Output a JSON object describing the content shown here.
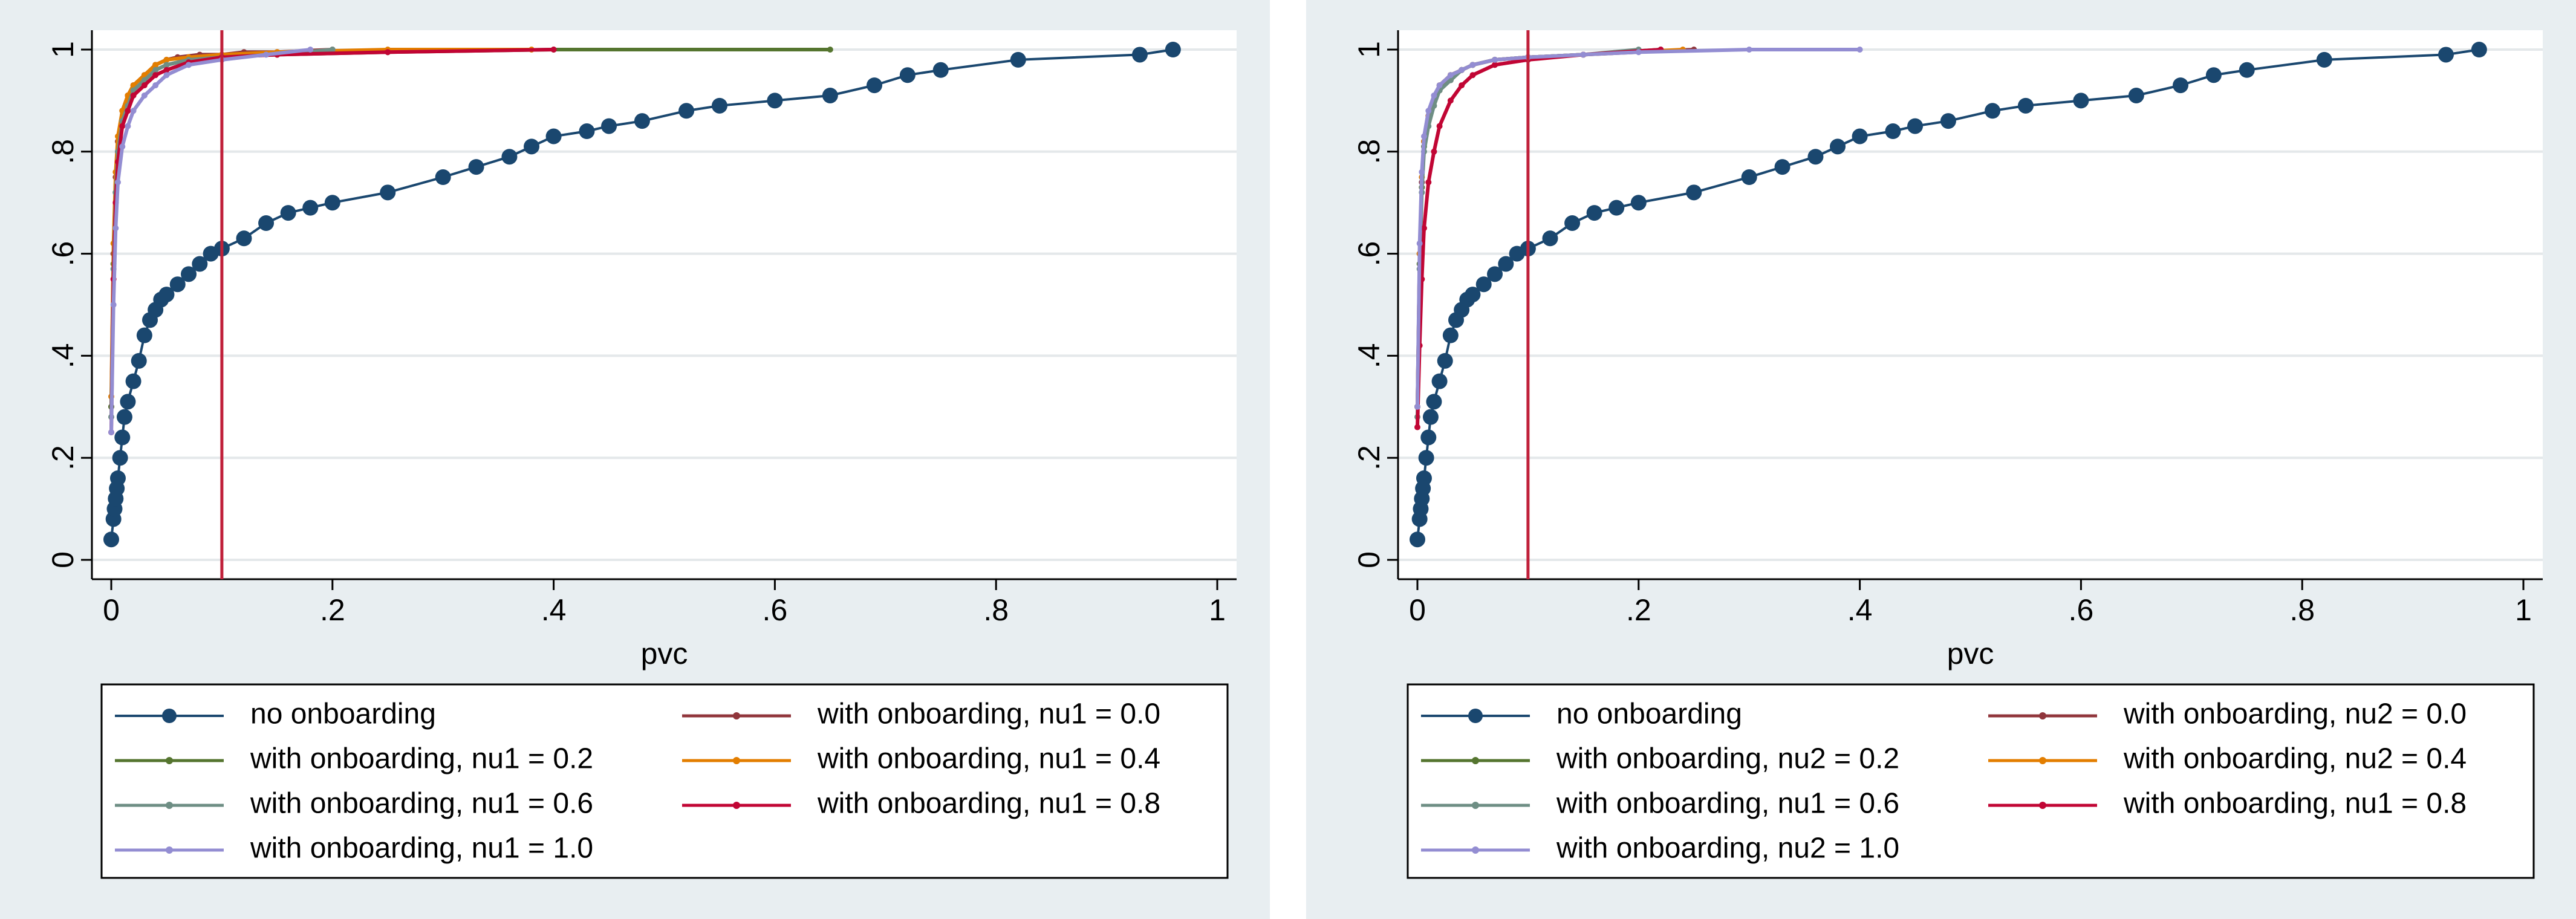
{
  "colors": {
    "background": "#e8eef1",
    "plot_bg": "#ffffff",
    "grid": "#e4e8ea",
    "axis": "#000000",
    "cutoff_line": "#c0203a",
    "no_onboarding": "#1a476f",
    "nu_0_0": "#90353b",
    "nu_0_2": "#55752f",
    "nu_0_4": "#e37e00",
    "nu_0_6": "#6e8e84",
    "nu_0_8": "#c10534",
    "nu_1_0": "#938dd2"
  },
  "chart_data": [
    {
      "type": "line",
      "xlabel": "pvc",
      "ylabel": "",
      "xlim": [
        0,
        1
      ],
      "ylim": [
        0,
        1
      ],
      "xticks": [
        0,
        0.2,
        0.4,
        0.6,
        0.8,
        1
      ],
      "xtick_labels": [
        "0",
        ".2",
        ".4",
        ".6",
        ".8",
        "1"
      ],
      "yticks": [
        0,
        0.2,
        0.4,
        0.6,
        0.8,
        1
      ],
      "ytick_labels": [
        "0",
        ".2",
        ".4",
        ".6",
        ".8",
        "1"
      ],
      "grid": true,
      "reference_line_x": 0.1,
      "legend_placement": "bottom",
      "series": [
        {
          "name": "no onboarding",
          "color_key": "no_onboarding",
          "marker": "large",
          "x": [
            0,
            0.002,
            0.003,
            0.004,
            0.005,
            0.006,
            0.008,
            0.01,
            0.012,
            0.015,
            0.02,
            0.025,
            0.03,
            0.035,
            0.04,
            0.045,
            0.05,
            0.06,
            0.07,
            0.08,
            0.09,
            0.1,
            0.12,
            0.14,
            0.16,
            0.18,
            0.2,
            0.25,
            0.3,
            0.33,
            0.36,
            0.38,
            0.4,
            0.43,
            0.45,
            0.48,
            0.52,
            0.55,
            0.6,
            0.65,
            0.69,
            0.72,
            0.75,
            0.82,
            0.93,
            0.96
          ],
          "y": [
            0.04,
            0.08,
            0.1,
            0.12,
            0.14,
            0.16,
            0.2,
            0.24,
            0.28,
            0.31,
            0.35,
            0.39,
            0.44,
            0.47,
            0.49,
            0.51,
            0.52,
            0.54,
            0.56,
            0.58,
            0.6,
            0.61,
            0.63,
            0.66,
            0.68,
            0.69,
            0.7,
            0.72,
            0.75,
            0.77,
            0.79,
            0.81,
            0.83,
            0.84,
            0.85,
            0.86,
            0.88,
            0.89,
            0.9,
            0.91,
            0.93,
            0.95,
            0.96,
            0.98,
            0.99,
            1.0
          ]
        },
        {
          "name": "with onboarding, nu1 = 0.0",
          "color_key": "nu_0_0",
          "marker": "small",
          "x": [
            0,
            0.002,
            0.004,
            0.006,
            0.01,
            0.015,
            0.02,
            0.03,
            0.04,
            0.05,
            0.06,
            0.08,
            0.1,
            0.12,
            0.15,
            0.2
          ],
          "y": [
            0.3,
            0.6,
            0.75,
            0.82,
            0.88,
            0.91,
            0.93,
            0.95,
            0.97,
            0.98,
            0.985,
            0.99,
            0.99,
            0.995,
            0.995,
            1.0
          ]
        },
        {
          "name": "with onboarding, nu1 = 0.2",
          "color_key": "nu_0_2",
          "marker": "small",
          "x": [
            0,
            0.002,
            0.004,
            0.006,
            0.01,
            0.015,
            0.02,
            0.03,
            0.04,
            0.05,
            0.07,
            0.1,
            0.15,
            0.25,
            0.4,
            0.65
          ],
          "y": [
            0.3,
            0.58,
            0.72,
            0.8,
            0.86,
            0.9,
            0.92,
            0.94,
            0.96,
            0.97,
            0.98,
            0.985,
            0.99,
            0.995,
            1.0,
            1.0
          ]
        },
        {
          "name": "with onboarding, nu1 = 0.4",
          "color_key": "nu_0_4",
          "marker": "small",
          "x": [
            0,
            0.002,
            0.004,
            0.006,
            0.01,
            0.015,
            0.02,
            0.03,
            0.04,
            0.05,
            0.07,
            0.1,
            0.15,
            0.25,
            0.38
          ],
          "y": [
            0.32,
            0.62,
            0.76,
            0.83,
            0.88,
            0.91,
            0.93,
            0.95,
            0.97,
            0.98,
            0.985,
            0.99,
            0.995,
            1.0,
            1.0
          ]
        },
        {
          "name": "with onboarding, nu1 = 0.6",
          "color_key": "nu_0_6",
          "marker": "small",
          "x": [
            0,
            0.002,
            0.004,
            0.006,
            0.01,
            0.015,
            0.02,
            0.03,
            0.04,
            0.05,
            0.07,
            0.1,
            0.15,
            0.2
          ],
          "y": [
            0.28,
            0.57,
            0.72,
            0.8,
            0.86,
            0.89,
            0.92,
            0.94,
            0.96,
            0.97,
            0.98,
            0.985,
            0.99,
            1.0
          ]
        },
        {
          "name": "with onboarding, nu1 = 0.8",
          "color_key": "nu_0_8",
          "marker": "small",
          "x": [
            0,
            0.002,
            0.004,
            0.006,
            0.01,
            0.015,
            0.02,
            0.03,
            0.04,
            0.05,
            0.07,
            0.1,
            0.15,
            0.25,
            0.4
          ],
          "y": [
            0.25,
            0.55,
            0.7,
            0.78,
            0.85,
            0.88,
            0.91,
            0.93,
            0.95,
            0.96,
            0.975,
            0.985,
            0.99,
            0.995,
            1.0
          ]
        },
        {
          "name": "with onboarding, nu1 = 1.0",
          "color_key": "nu_1_0",
          "marker": "small",
          "x": [
            0,
            0.002,
            0.004,
            0.006,
            0.01,
            0.015,
            0.02,
            0.03,
            0.04,
            0.05,
            0.07,
            0.1,
            0.14,
            0.18
          ],
          "y": [
            0.25,
            0.5,
            0.65,
            0.74,
            0.81,
            0.85,
            0.88,
            0.91,
            0.93,
            0.95,
            0.97,
            0.98,
            0.99,
            1.0
          ]
        }
      ],
      "legend": [
        {
          "label": "no onboarding",
          "color_key": "no_onboarding",
          "marker": "large"
        },
        {
          "label": "with onboarding, nu1 = 0.0",
          "color_key": "nu_0_0",
          "marker": "small"
        },
        {
          "label": "with onboarding, nu1 = 0.2",
          "color_key": "nu_0_2",
          "marker": "small"
        },
        {
          "label": "with onboarding, nu1 = 0.4",
          "color_key": "nu_0_4",
          "marker": "small"
        },
        {
          "label": "with onboarding, nu1 = 0.6",
          "color_key": "nu_0_6",
          "marker": "small"
        },
        {
          "label": "with onboarding, nu1 = 0.8",
          "color_key": "nu_0_8",
          "marker": "small"
        },
        {
          "label": "with onboarding, nu1 = 1.0",
          "color_key": "nu_1_0",
          "marker": "small"
        }
      ]
    },
    {
      "type": "line",
      "xlabel": "pvc",
      "ylabel": "",
      "xlim": [
        0,
        1
      ],
      "ylim": [
        0,
        1
      ],
      "xticks": [
        0,
        0.2,
        0.4,
        0.6,
        0.8,
        1
      ],
      "xtick_labels": [
        "0",
        ".2",
        ".4",
        ".6",
        ".8",
        "1"
      ],
      "yticks": [
        0,
        0.2,
        0.4,
        0.6,
        0.8,
        1
      ],
      "ytick_labels": [
        "0",
        ".2",
        ".4",
        ".6",
        ".8",
        "1"
      ],
      "grid": true,
      "reference_line_x": 0.1,
      "legend_placement": "bottom",
      "series": [
        {
          "name": "no onboarding",
          "color_key": "no_onboarding",
          "marker": "large",
          "x": [
            0,
            0.002,
            0.003,
            0.004,
            0.005,
            0.006,
            0.008,
            0.01,
            0.012,
            0.015,
            0.02,
            0.025,
            0.03,
            0.035,
            0.04,
            0.045,
            0.05,
            0.06,
            0.07,
            0.08,
            0.09,
            0.1,
            0.12,
            0.14,
            0.16,
            0.18,
            0.2,
            0.25,
            0.3,
            0.33,
            0.36,
            0.38,
            0.4,
            0.43,
            0.45,
            0.48,
            0.52,
            0.55,
            0.6,
            0.65,
            0.69,
            0.72,
            0.75,
            0.82,
            0.93,
            0.96
          ],
          "y": [
            0.04,
            0.08,
            0.1,
            0.12,
            0.14,
            0.16,
            0.2,
            0.24,
            0.28,
            0.31,
            0.35,
            0.39,
            0.44,
            0.47,
            0.49,
            0.51,
            0.52,
            0.54,
            0.56,
            0.58,
            0.6,
            0.61,
            0.63,
            0.66,
            0.68,
            0.69,
            0.7,
            0.72,
            0.75,
            0.77,
            0.79,
            0.81,
            0.83,
            0.84,
            0.85,
            0.86,
            0.88,
            0.89,
            0.9,
            0.91,
            0.93,
            0.95,
            0.96,
            0.98,
            0.99,
            1.0
          ]
        },
        {
          "name": "with onboarding, nu2 = 0.0",
          "color_key": "nu_0_0",
          "marker": "small",
          "x": [
            0,
            0.002,
            0.004,
            0.006,
            0.01,
            0.015,
            0.02,
            0.03,
            0.04,
            0.05,
            0.07,
            0.1,
            0.15,
            0.25
          ],
          "y": [
            0.3,
            0.6,
            0.74,
            0.82,
            0.87,
            0.9,
            0.92,
            0.95,
            0.96,
            0.97,
            0.98,
            0.985,
            0.99,
            1.0
          ]
        },
        {
          "name": "with onboarding, nu2 = 0.2",
          "color_key": "nu_0_2",
          "marker": "small",
          "x": [
            0,
            0.002,
            0.004,
            0.006,
            0.01,
            0.015,
            0.02,
            0.03,
            0.04,
            0.05,
            0.07,
            0.1,
            0.15,
            0.22
          ],
          "y": [
            0.3,
            0.58,
            0.73,
            0.81,
            0.86,
            0.9,
            0.92,
            0.94,
            0.96,
            0.97,
            0.98,
            0.985,
            0.99,
            1.0
          ]
        },
        {
          "name": "with onboarding, nu2 = 0.4",
          "color_key": "nu_0_4",
          "marker": "small",
          "x": [
            0,
            0.002,
            0.004,
            0.006,
            0.01,
            0.015,
            0.02,
            0.03,
            0.04,
            0.05,
            0.07,
            0.1,
            0.15,
            0.24
          ],
          "y": [
            0.3,
            0.6,
            0.75,
            0.82,
            0.87,
            0.9,
            0.93,
            0.95,
            0.96,
            0.97,
            0.98,
            0.985,
            0.99,
            1.0
          ]
        },
        {
          "name": "with onboarding, nu1 = 0.6",
          "color_key": "nu_0_6",
          "marker": "small",
          "x": [
            0,
            0.002,
            0.004,
            0.006,
            0.01,
            0.015,
            0.02,
            0.03,
            0.04,
            0.05,
            0.07,
            0.1,
            0.15,
            0.2
          ],
          "y": [
            0.28,
            0.57,
            0.72,
            0.8,
            0.85,
            0.89,
            0.92,
            0.94,
            0.96,
            0.97,
            0.98,
            0.985,
            0.99,
            1.0
          ]
        },
        {
          "name": "with onboarding, nu1 = 0.8",
          "color_key": "nu_0_8",
          "marker": "small",
          "x": [
            0,
            0.002,
            0.004,
            0.006,
            0.01,
            0.015,
            0.02,
            0.03,
            0.04,
            0.05,
            0.07,
            0.1,
            0.15,
            0.22
          ],
          "y": [
            0.26,
            0.42,
            0.55,
            0.65,
            0.74,
            0.8,
            0.85,
            0.9,
            0.93,
            0.95,
            0.97,
            0.98,
            0.99,
            1.0
          ]
        },
        {
          "name": "with onboarding, nu2 = 1.0",
          "color_key": "nu_1_0",
          "marker": "small",
          "x": [
            0,
            0.002,
            0.004,
            0.006,
            0.01,
            0.015,
            0.02,
            0.03,
            0.04,
            0.05,
            0.07,
            0.1,
            0.15,
            0.2,
            0.3,
            0.4
          ],
          "y": [
            0.3,
            0.62,
            0.76,
            0.83,
            0.88,
            0.91,
            0.93,
            0.95,
            0.96,
            0.97,
            0.98,
            0.985,
            0.99,
            0.995,
            1.0,
            1.0
          ]
        }
      ],
      "legend": [
        {
          "label": "no onboarding",
          "color_key": "no_onboarding",
          "marker": "large"
        },
        {
          "label": "with onboarding, nu2 = 0.0",
          "color_key": "nu_0_0",
          "marker": "small"
        },
        {
          "label": "with onboarding, nu2 = 0.2",
          "color_key": "nu_0_2",
          "marker": "small"
        },
        {
          "label": "with onboarding, nu2 = 0.4",
          "color_key": "nu_0_4",
          "marker": "small"
        },
        {
          "label": "with onboarding, nu1 = 0.6",
          "color_key": "nu_0_6",
          "marker": "small"
        },
        {
          "label": "with onboarding, nu1 = 0.8",
          "color_key": "nu_0_8",
          "marker": "small"
        },
        {
          "label": "with onboarding, nu2 = 1.0",
          "color_key": "nu_1_0",
          "marker": "small"
        }
      ]
    }
  ]
}
